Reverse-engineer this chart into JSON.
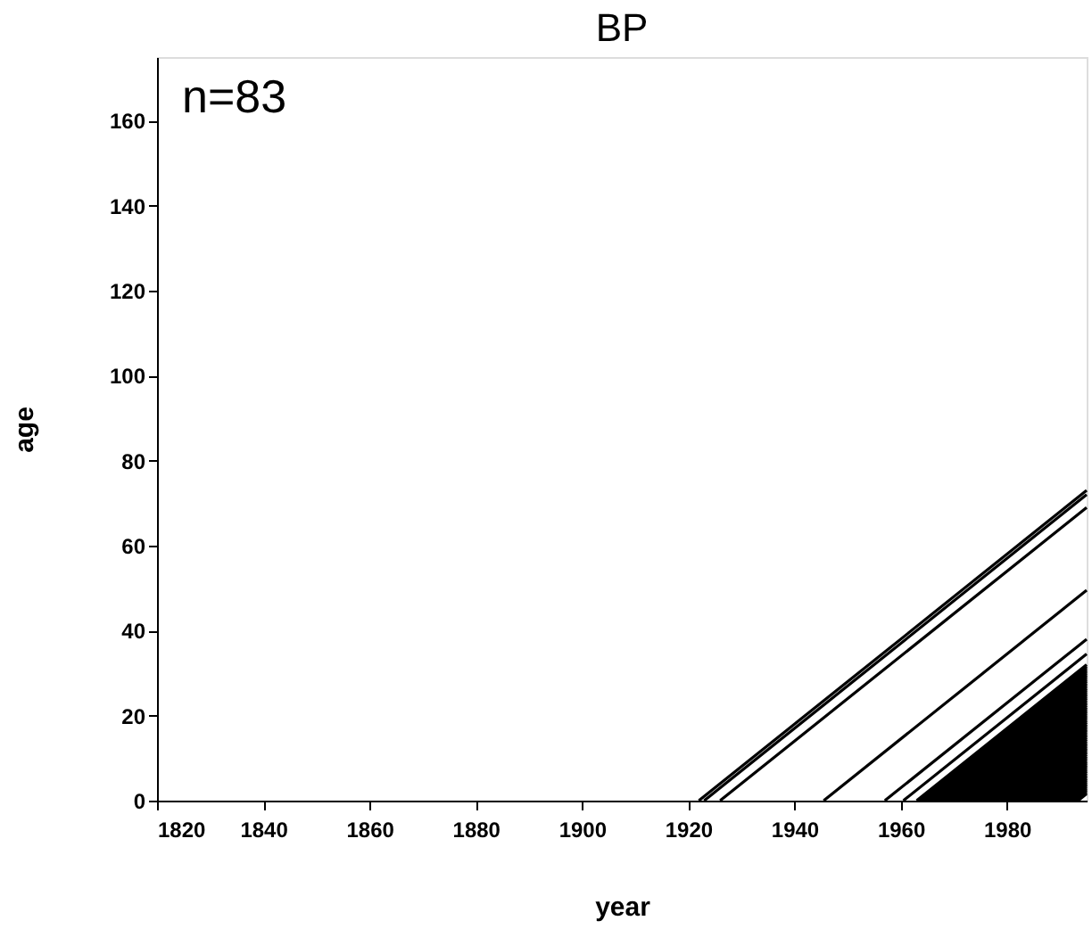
{
  "chart_data": {
    "type": "line",
    "title": "BP",
    "xlabel": "year",
    "ylabel": "age",
    "annotations": [
      "n=83"
    ],
    "xlim": [
      1820,
      1995
    ],
    "xticks": [
      1820,
      1840,
      1860,
      1880,
      1900,
      1920,
      1940,
      1960,
      1980
    ],
    "ylim": [
      0,
      175
    ],
    "yticks": [
      0,
      20,
      40,
      60,
      80,
      100,
      120,
      140,
      160
    ],
    "grid": false,
    "legend": false,
    "marker": "none",
    "line_style": "solid",
    "series": [
      {
        "color": "#000000",
        "x": [
          1922,
          1995
        ],
        "values": [
          0,
          73
        ]
      },
      {
        "color": "#000000",
        "x": [
          1923,
          1995
        ],
        "values": [
          0,
          72
        ]
      },
      {
        "color": "#000000",
        "x": [
          1926,
          1995
        ],
        "values": [
          0,
          69
        ]
      },
      {
        "color": "#000000",
        "x": [
          1945.5,
          1995
        ],
        "values": [
          0,
          49.5
        ]
      },
      {
        "color": "#000000",
        "x": [
          1957,
          1995
        ],
        "values": [
          0,
          38
        ]
      },
      {
        "color": "#000000",
        "x": [
          1960.5,
          1995
        ],
        "values": [
          0,
          34.5
        ]
      },
      {
        "color": "#000000",
        "x": [
          1963.0,
          1995
        ],
        "values": [
          0,
          32.0
        ]
      },
      {
        "color": "#000000",
        "x": [
          1963.4,
          1995
        ],
        "values": [
          0,
          31.6
        ]
      },
      {
        "color": "#000000",
        "x": [
          1963.8,
          1995
        ],
        "values": [
          0,
          31.2
        ]
      },
      {
        "color": "#000000",
        "x": [
          1964.2,
          1995
        ],
        "values": [
          0,
          30.8
        ]
      },
      {
        "color": "#000000",
        "x": [
          1964.6,
          1995
        ],
        "values": [
          0,
          30.4
        ]
      },
      {
        "color": "#000000",
        "x": [
          1965.0,
          1995
        ],
        "values": [
          0,
          30.0
        ]
      },
      {
        "color": "#000000",
        "x": [
          1965.4,
          1995
        ],
        "values": [
          0,
          29.6
        ]
      },
      {
        "color": "#000000",
        "x": [
          1965.8,
          1995
        ],
        "values": [
          0,
          29.2
        ]
      },
      {
        "color": "#000000",
        "x": [
          1966.2,
          1995
        ],
        "values": [
          0,
          28.8
        ]
      },
      {
        "color": "#000000",
        "x": [
          1966.6,
          1995
        ],
        "values": [
          0,
          28.4
        ]
      },
      {
        "color": "#000000",
        "x": [
          1967.0,
          1995
        ],
        "values": [
          0,
          28.0
        ]
      },
      {
        "color": "#000000",
        "x": [
          1967.4,
          1995
        ],
        "values": [
          0,
          27.6
        ]
      },
      {
        "color": "#000000",
        "x": [
          1967.8,
          1995
        ],
        "values": [
          0,
          27.2
        ]
      },
      {
        "color": "#000000",
        "x": [
          1968.2,
          1995
        ],
        "values": [
          0,
          26.8
        ]
      },
      {
        "color": "#000000",
        "x": [
          1968.6,
          1995
        ],
        "values": [
          0,
          26.4
        ]
      },
      {
        "color": "#000000",
        "x": [
          1969.0,
          1995
        ],
        "values": [
          0,
          26.0
        ]
      },
      {
        "color": "#000000",
        "x": [
          1969.4,
          1995
        ],
        "values": [
          0,
          25.6
        ]
      },
      {
        "color": "#000000",
        "x": [
          1969.8,
          1995
        ],
        "values": [
          0,
          25.2
        ]
      },
      {
        "color": "#000000",
        "x": [
          1970.2,
          1995
        ],
        "values": [
          0,
          24.8
        ]
      },
      {
        "color": "#000000",
        "x": [
          1970.6,
          1995
        ],
        "values": [
          0,
          24.4
        ]
      },
      {
        "color": "#000000",
        "x": [
          1971.0,
          1995
        ],
        "values": [
          0,
          24.0
        ]
      },
      {
        "color": "#000000",
        "x": [
          1971.4,
          1995
        ],
        "values": [
          0,
          23.6
        ]
      },
      {
        "color": "#000000",
        "x": [
          1971.8,
          1995
        ],
        "values": [
          0,
          23.2
        ]
      },
      {
        "color": "#000000",
        "x": [
          1972.2,
          1995
        ],
        "values": [
          0,
          22.8
        ]
      },
      {
        "color": "#000000",
        "x": [
          1972.6,
          1995
        ],
        "values": [
          0,
          22.4
        ]
      },
      {
        "color": "#000000",
        "x": [
          1973.0,
          1995
        ],
        "values": [
          0,
          22.0
        ]
      },
      {
        "color": "#000000",
        "x": [
          1973.4,
          1995
        ],
        "values": [
          0,
          21.6
        ]
      },
      {
        "color": "#000000",
        "x": [
          1973.8,
          1995
        ],
        "values": [
          0,
          21.2
        ]
      },
      {
        "color": "#000000",
        "x": [
          1974.2,
          1995
        ],
        "values": [
          0,
          20.8
        ]
      },
      {
        "color": "#000000",
        "x": [
          1974.6,
          1995
        ],
        "values": [
          0,
          20.4
        ]
      },
      {
        "color": "#000000",
        "x": [
          1975.0,
          1995
        ],
        "values": [
          0,
          20.0
        ]
      },
      {
        "color": "#000000",
        "x": [
          1975.4,
          1995
        ],
        "values": [
          0,
          19.6
        ]
      },
      {
        "color": "#000000",
        "x": [
          1975.8,
          1995
        ],
        "values": [
          0,
          19.2
        ]
      },
      {
        "color": "#000000",
        "x": [
          1976.2,
          1995
        ],
        "values": [
          0,
          18.8
        ]
      },
      {
        "color": "#000000",
        "x": [
          1976.6,
          1995
        ],
        "values": [
          0,
          18.4
        ]
      },
      {
        "color": "#000000",
        "x": [
          1977.0,
          1995
        ],
        "values": [
          0,
          18.0
        ]
      },
      {
        "color": "#000000",
        "x": [
          1977.4,
          1995
        ],
        "values": [
          0,
          17.6
        ]
      },
      {
        "color": "#000000",
        "x": [
          1977.8,
          1995
        ],
        "values": [
          0,
          17.2
        ]
      },
      {
        "color": "#000000",
        "x": [
          1978.2,
          1995
        ],
        "values": [
          0,
          16.8
        ]
      },
      {
        "color": "#000000",
        "x": [
          1978.6,
          1995
        ],
        "values": [
          0,
          16.4
        ]
      },
      {
        "color": "#000000",
        "x": [
          1979.0,
          1995
        ],
        "values": [
          0,
          16.0
        ]
      },
      {
        "color": "#000000",
        "x": [
          1979.4,
          1995
        ],
        "values": [
          0,
          15.6
        ]
      },
      {
        "color": "#000000",
        "x": [
          1979.8,
          1995
        ],
        "values": [
          0,
          15.2
        ]
      },
      {
        "color": "#000000",
        "x": [
          1980.2,
          1995
        ],
        "values": [
          0,
          14.8
        ]
      },
      {
        "color": "#000000",
        "x": [
          1980.6,
          1995
        ],
        "values": [
          0,
          14.4
        ]
      },
      {
        "color": "#000000",
        "x": [
          1981.0,
          1995
        ],
        "values": [
          0,
          14.0
        ]
      },
      {
        "color": "#000000",
        "x": [
          1981.4,
          1995
        ],
        "values": [
          0,
          13.6
        ]
      },
      {
        "color": "#000000",
        "x": [
          1981.8,
          1995
        ],
        "values": [
          0,
          13.2
        ]
      },
      {
        "color": "#000000",
        "x": [
          1982.2,
          1995
        ],
        "values": [
          0,
          12.8
        ]
      },
      {
        "color": "#000000",
        "x": [
          1982.6,
          1995
        ],
        "values": [
          0,
          12.4
        ]
      },
      {
        "color": "#000000",
        "x": [
          1983.0,
          1995
        ],
        "values": [
          0,
          12.0
        ]
      },
      {
        "color": "#000000",
        "x": [
          1983.4,
          1995
        ],
        "values": [
          0,
          11.6
        ]
      },
      {
        "color": "#000000",
        "x": [
          1983.8,
          1995
        ],
        "values": [
          0,
          11.2
        ]
      },
      {
        "color": "#000000",
        "x": [
          1984.2,
          1995
        ],
        "values": [
          0,
          10.8
        ]
      },
      {
        "color": "#000000",
        "x": [
          1984.6,
          1995
        ],
        "values": [
          0,
          10.4
        ]
      },
      {
        "color": "#000000",
        "x": [
          1985.0,
          1995
        ],
        "values": [
          0,
          10.0
        ]
      },
      {
        "color": "#000000",
        "x": [
          1985.4,
          1995
        ],
        "values": [
          0,
          9.6
        ]
      },
      {
        "color": "#000000",
        "x": [
          1985.8,
          1995
        ],
        "values": [
          0,
          9.2
        ]
      },
      {
        "color": "#000000",
        "x": [
          1986.2,
          1995
        ],
        "values": [
          0,
          8.8
        ]
      },
      {
        "color": "#000000",
        "x": [
          1986.6,
          1995
        ],
        "values": [
          0,
          8.4
        ]
      },
      {
        "color": "#000000",
        "x": [
          1987.0,
          1995
        ],
        "values": [
          0,
          8.0
        ]
      },
      {
        "color": "#000000",
        "x": [
          1987.4,
          1995
        ],
        "values": [
          0,
          7.6
        ]
      },
      {
        "color": "#000000",
        "x": [
          1987.8,
          1995
        ],
        "values": [
          0,
          7.2
        ]
      },
      {
        "color": "#000000",
        "x": [
          1988.2,
          1995
        ],
        "values": [
          0,
          6.8
        ]
      },
      {
        "color": "#000000",
        "x": [
          1988.6,
          1995
        ],
        "values": [
          0,
          6.4
        ]
      },
      {
        "color": "#000000",
        "x": [
          1989.0,
          1995
        ],
        "values": [
          0,
          6.0
        ]
      },
      {
        "color": "#000000",
        "x": [
          1989.4,
          1995
        ],
        "values": [
          0,
          5.6
        ]
      },
      {
        "color": "#000000",
        "x": [
          1989.8,
          1995
        ],
        "values": [
          0,
          5.2
        ]
      },
      {
        "color": "#000000",
        "x": [
          1990.2,
          1995
        ],
        "values": [
          0,
          4.8
        ]
      },
      {
        "color": "#000000",
        "x": [
          1990.6,
          1995
        ],
        "values": [
          0,
          4.4
        ]
      },
      {
        "color": "#000000",
        "x": [
          1991.0,
          1995
        ],
        "values": [
          0,
          4.0
        ]
      },
      {
        "color": "#000000",
        "x": [
          1991.4,
          1995
        ],
        "values": [
          0,
          3.6
        ]
      },
      {
        "color": "#000000",
        "x": [
          1991.8,
          1995
        ],
        "values": [
          0,
          3.2
        ]
      },
      {
        "color": "#000000",
        "x": [
          1992.2,
          1995
        ],
        "values": [
          0,
          2.8
        ]
      },
      {
        "color": "#000000",
        "x": [
          1992.6,
          1995
        ],
        "values": [
          0,
          2.4
        ]
      },
      {
        "color": "#000000",
        "x": [
          1993.0,
          1995
        ],
        "values": [
          0,
          2.0
        ]
      },
      {
        "color": "#000000",
        "x": [
          1993.4,
          1995
        ],
        "values": [
          0,
          1.6
        ]
      }
    ]
  }
}
